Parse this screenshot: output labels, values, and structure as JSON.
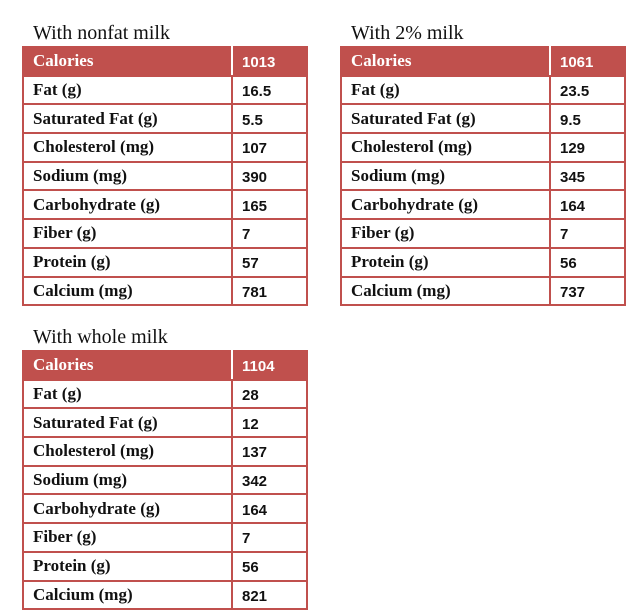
{
  "tables": [
    {
      "title": "With nonfat milk",
      "header": [
        "Calories",
        1013
      ],
      "rows": [
        [
          "Fat (g)",
          16.5
        ],
        [
          "Saturated Fat (g)",
          5.5
        ],
        [
          "Cholesterol (mg)",
          107
        ],
        [
          "Sodium (mg)",
          390
        ],
        [
          "Carbohydrate (g)",
          165
        ],
        [
          "Fiber (g)",
          7
        ],
        [
          "Protein (g)",
          57
        ],
        [
          "Calcium (mg)",
          781
        ]
      ]
    },
    {
      "title": "With 2% milk",
      "header": [
        "Calories",
        1061
      ],
      "rows": [
        [
          "Fat (g)",
          23.5
        ],
        [
          "Saturated Fat (g)",
          9.5
        ],
        [
          "Cholesterol (mg)",
          129
        ],
        [
          "Sodium (mg)",
          345
        ],
        [
          "Carbohydrate (g)",
          164
        ],
        [
          "Fiber (g)",
          7
        ],
        [
          "Protein (g)",
          56
        ],
        [
          "Calcium (mg)",
          737
        ]
      ]
    },
    {
      "title": "With whole milk",
      "header": [
        "Calories",
        1104
      ],
      "rows": [
        [
          "Fat (g)",
          28
        ],
        [
          "Saturated Fat (g)",
          12
        ],
        [
          "Cholesterol (mg)",
          137
        ],
        [
          "Sodium (mg)",
          342
        ],
        [
          "Carbohydrate (g)",
          164
        ],
        [
          "Fiber (g)",
          7
        ],
        [
          "Protein (g)",
          56
        ],
        [
          "Calcium (mg)",
          821
        ]
      ]
    }
  ]
}
